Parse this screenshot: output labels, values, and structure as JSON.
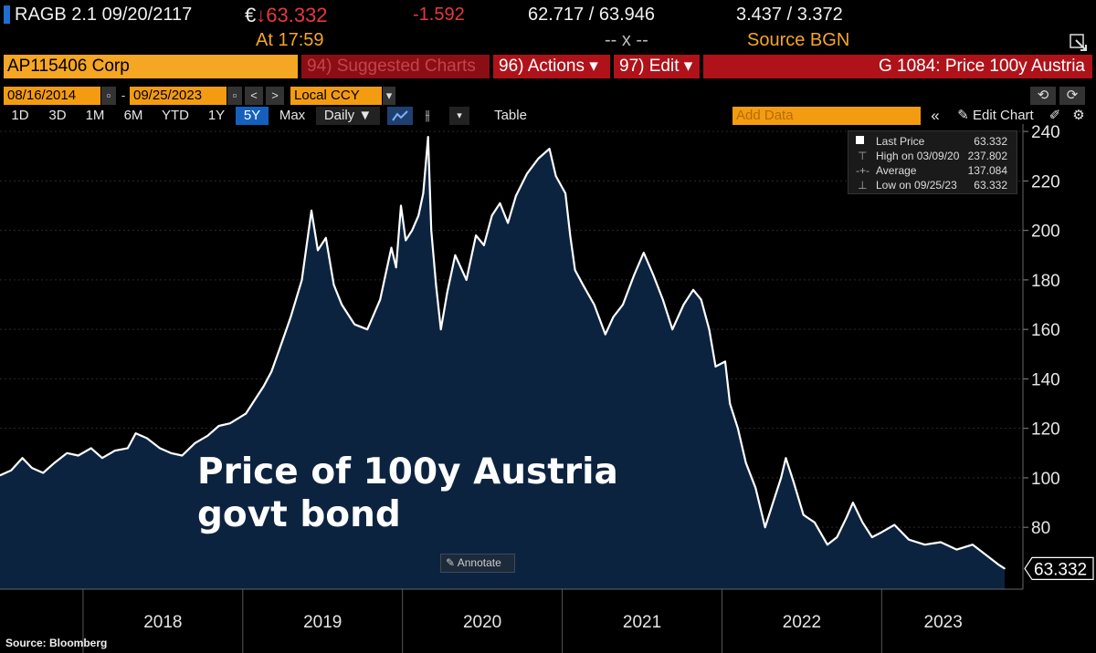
{
  "header": {
    "ticker": "RAGB 2.1 09/20/2117",
    "currency": "€",
    "arrow": "↓",
    "last": "63.332",
    "change": "-1.592",
    "bid_ask": "62.717 / 63.946",
    "yields": "3.437 / 3.372",
    "time": "At 17:59",
    "volume": "-- x --",
    "source": "Source BGN"
  },
  "toolbar": {
    "security": "AP115406 Corp",
    "suggested": "94) Suggested Charts",
    "actions": "96) Actions ▾",
    "edit": "97) Edit ▾",
    "function_title": "G 1084: Price 100y Austria"
  },
  "dates": {
    "start": "08/16/2014",
    "end": "09/25/2023",
    "currency": "Local CCY"
  },
  "ranges": [
    "1D",
    "3D",
    "1M",
    "6M",
    "YTD",
    "1Y",
    "5Y",
    "Max"
  ],
  "active_range": "5Y",
  "controls": {
    "frequency": "Daily ▼",
    "table": "Table",
    "add_data_placeholder": "Add Data",
    "edit_chart": "Edit Chart"
  },
  "legend": {
    "rows": [
      {
        "label": "Last Price",
        "value": "63.332"
      },
      {
        "label": "High on 03/09/20",
        "value": "237.802"
      },
      {
        "label": "Average",
        "value": "137.084"
      },
      {
        "label": "Low on 09/25/23",
        "value": "63.332"
      }
    ]
  },
  "annotation": {
    "line1": "Price of 100y Austria",
    "line2": "govt bond"
  },
  "annotate_button": "Annotate",
  "footer": "Source: Bloomberg",
  "colors": {
    "amber": "#f5a623",
    "red_bar": "#b0121a",
    "area_fill": "#0c2340",
    "line": "#ffffff",
    "active_tab": "#1560bd"
  },
  "chart_data": {
    "type": "area",
    "title": "Price of 100y Austria govt bond",
    "ylabel": "",
    "xlabel": "",
    "ylim": [
      55,
      243
    ],
    "y_ticks": [
      80,
      100,
      120,
      140,
      160,
      180,
      200,
      220,
      240
    ],
    "x_ticks": [
      "2018",
      "2019",
      "2020",
      "2021",
      "2022",
      "2023"
    ],
    "last_value_label": "63.332",
    "x_range": [
      2017.48,
      2023.77
    ],
    "series": [
      {
        "name": "Last Price",
        "points": [
          [
            2017.48,
            101
          ],
          [
            2017.55,
            103
          ],
          [
            2017.62,
            108
          ],
          [
            2017.68,
            104
          ],
          [
            2017.75,
            102
          ],
          [
            2017.82,
            106
          ],
          [
            2017.9,
            110
          ],
          [
            2017.97,
            109
          ],
          [
            2018.05,
            112
          ],
          [
            2018.12,
            108
          ],
          [
            2018.2,
            111
          ],
          [
            2018.28,
            112
          ],
          [
            2018.33,
            118
          ],
          [
            2018.4,
            116
          ],
          [
            2018.48,
            112
          ],
          [
            2018.55,
            110
          ],
          [
            2018.62,
            109
          ],
          [
            2018.7,
            114
          ],
          [
            2018.78,
            117
          ],
          [
            2018.85,
            121
          ],
          [
            2018.92,
            122
          ],
          [
            2018.97,
            124
          ],
          [
            2019.02,
            126
          ],
          [
            2019.08,
            132
          ],
          [
            2019.13,
            137
          ],
          [
            2019.18,
            143
          ],
          [
            2019.23,
            152
          ],
          [
            2019.3,
            165
          ],
          [
            2019.37,
            180
          ],
          [
            2019.43,
            208
          ],
          [
            2019.47,
            192
          ],
          [
            2019.52,
            197
          ],
          [
            2019.57,
            178
          ],
          [
            2019.62,
            170
          ],
          [
            2019.7,
            162
          ],
          [
            2019.78,
            160
          ],
          [
            2019.86,
            172
          ],
          [
            2019.93,
            193
          ],
          [
            2019.96,
            185
          ],
          [
            2019.99,
            210
          ],
          [
            2020.02,
            196
          ],
          [
            2020.06,
            200
          ],
          [
            2020.1,
            206
          ],
          [
            2020.13,
            215
          ],
          [
            2020.16,
            237.8
          ],
          [
            2020.18,
            200
          ],
          [
            2020.21,
            178
          ],
          [
            2020.24,
            160
          ],
          [
            2020.28,
            175
          ],
          [
            2020.33,
            190
          ],
          [
            2020.4,
            180
          ],
          [
            2020.46,
            198
          ],
          [
            2020.51,
            194
          ],
          [
            2020.56,
            206
          ],
          [
            2020.61,
            211
          ],
          [
            2020.66,
            203
          ],
          [
            2020.71,
            214
          ],
          [
            2020.78,
            223
          ],
          [
            2020.85,
            229
          ],
          [
            2020.92,
            233
          ],
          [
            2020.96,
            222
          ],
          [
            2021.02,
            215
          ],
          [
            2021.05,
            198
          ],
          [
            2021.08,
            184
          ],
          [
            2021.13,
            178
          ],
          [
            2021.2,
            170
          ],
          [
            2021.27,
            158
          ],
          [
            2021.32,
            165
          ],
          [
            2021.38,
            170
          ],
          [
            2021.45,
            182
          ],
          [
            2021.51,
            191
          ],
          [
            2021.57,
            182
          ],
          [
            2021.63,
            172
          ],
          [
            2021.69,
            160
          ],
          [
            2021.76,
            170
          ],
          [
            2021.82,
            176
          ],
          [
            2021.87,
            172
          ],
          [
            2021.92,
            160
          ],
          [
            2021.96,
            145
          ],
          [
            2022.02,
            147
          ],
          [
            2022.05,
            130
          ],
          [
            2022.1,
            120
          ],
          [
            2022.15,
            106
          ],
          [
            2022.21,
            96
          ],
          [
            2022.27,
            80
          ],
          [
            2022.32,
            90
          ],
          [
            2022.37,
            100
          ],
          [
            2022.4,
            108
          ],
          [
            2022.45,
            98
          ],
          [
            2022.51,
            85
          ],
          [
            2022.58,
            82
          ],
          [
            2022.66,
            73
          ],
          [
            2022.72,
            76
          ],
          [
            2022.78,
            84
          ],
          [
            2022.82,
            90
          ],
          [
            2022.88,
            82
          ],
          [
            2022.94,
            76
          ],
          [
            2023.0,
            78
          ],
          [
            2023.08,
            81
          ],
          [
            2023.17,
            75
          ],
          [
            2023.27,
            73
          ],
          [
            2023.37,
            74
          ],
          [
            2023.47,
            71
          ],
          [
            2023.57,
            73
          ],
          [
            2023.67,
            68
          ],
          [
            2023.73,
            65
          ],
          [
            2023.77,
            63.332
          ]
        ]
      }
    ]
  }
}
